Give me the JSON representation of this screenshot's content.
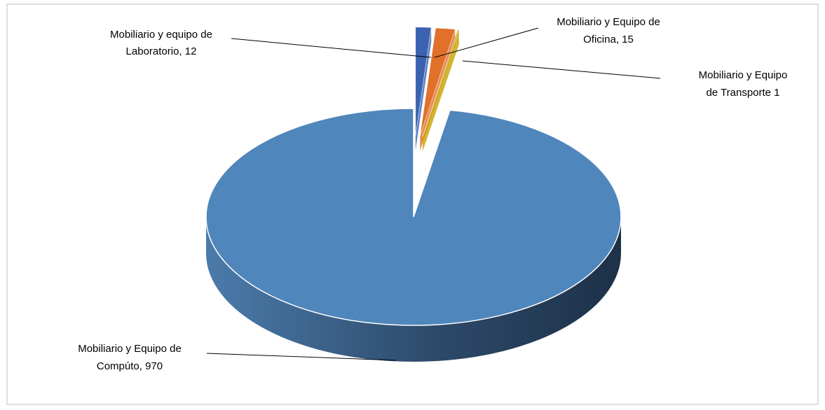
{
  "chart_data": {
    "type": "pie3d",
    "values": [
      12,
      15,
      1,
      970
    ],
    "value_labels": [
      "Mobiliario y equipo de Laboratorio, 12",
      "Mobiliario y Equipo de Oficina, 15",
      "Mobiliario y Equipo de Transporte 1",
      "Mobiliario y Equipo de Compúto, 970"
    ],
    "colors": [
      "#3a62b0",
      "#e0702a",
      "#c8a000",
      "#4f86bb"
    ]
  }
}
